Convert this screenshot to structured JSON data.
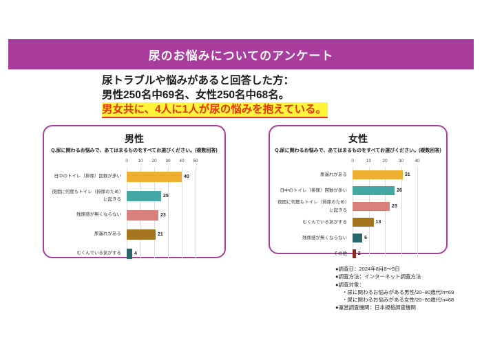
{
  "header": {
    "title": "尿のお悩みについてのアンケート"
  },
  "colors": {
    "accent": "#A93C9C",
    "highlight_bg": "#FFF33B",
    "highlight_text": "#E8340C"
  },
  "intro": {
    "line1": "尿トラブルや悩みがあると回答した方：",
    "line2": "男性250名中69名、女性250名中68名。",
    "highlight": "男女共に、4人に1人が尿の悩みを抱えている。"
  },
  "chart_data": [
    {
      "type": "bar",
      "orientation": "horizontal",
      "panel_title": "男性",
      "question": "Q.尿に関わるお悩みで、あてはまるものをすべてお選びください。(複数回答)",
      "categories": [
        "日中のトイレ（排尿）回数が多い",
        "夜間に何度もトイレ（排尿のため）に起きる",
        "残尿感が無くならない",
        "尿漏れがある",
        "むくんでいる気がする"
      ],
      "values": [
        40,
        25,
        23,
        21,
        4
      ],
      "bar_colors": [
        "#EDAF32",
        "#45A7A4",
        "#D97F7B",
        "#A5741E",
        "#2B666B"
      ],
      "axis_ticks": [
        0,
        10,
        20,
        30,
        40,
        50
      ],
      "axis_max": 50,
      "xlim": [
        0,
        50
      ],
      "grid": "vertical"
    },
    {
      "type": "bar",
      "orientation": "horizontal",
      "panel_title": "女性",
      "question": "Q.尿に関わるお悩みで、あてはまるものをすべてお選びください。(複数回答)",
      "categories": [
        "尿漏れがある",
        "日中のトイレ（排尿）回数が多い",
        "夜間に何度もトイレ（排尿のため）に起きる",
        "むくんでいる気がする",
        "残尿感が無くならない",
        "その他"
      ],
      "values": [
        31,
        26,
        23,
        13,
        6,
        2
      ],
      "bar_colors": [
        "#EDAF32",
        "#45A7A4",
        "#D97F7B",
        "#A5741E",
        "#2B666B",
        "#8F2B25"
      ],
      "axis_ticks": [
        0,
        10,
        20,
        30,
        40
      ],
      "axis_max": 40,
      "xlim": [
        0,
        40
      ],
      "grid": "vertical"
    }
  ],
  "footer": {
    "lines": [
      {
        "text": "●調査日：2024年8月8～9日",
        "indent": false
      },
      {
        "text": "●調査方法：インターネット調査方法",
        "indent": false
      },
      {
        "text": "●調査対象：",
        "indent": false
      },
      {
        "text": "・尿に関わるお悩みがある男性/20~80歳代/n=69",
        "indent": true
      },
      {
        "text": "・尿に関わるお悩みがある女性/20~80歳代/n=68",
        "indent": true
      },
      {
        "text": "●運営調査機関：日本規格調査機関",
        "indent": false
      }
    ]
  }
}
